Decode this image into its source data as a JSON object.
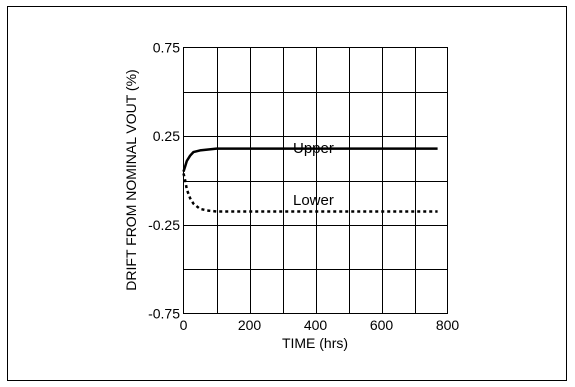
{
  "chart_data": {
    "type": "line",
    "title": "",
    "xlabel": "TIME (hrs)",
    "ylabel": "DRIFT FROM NOMINAL VOUT (%)",
    "xlim": [
      0,
      800
    ],
    "ylim": [
      -0.75,
      0.75
    ],
    "x_ticks": [
      0,
      200,
      400,
      600,
      800
    ],
    "x_tick_labels": [
      "0",
      "200",
      "400",
      "600",
      "800"
    ],
    "y_ticks": [
      -0.75,
      -0.25,
      0.25,
      0.75
    ],
    "y_tick_labels": [
      "-0.75",
      "-0.25",
      "0.25",
      "0.75"
    ],
    "grid": true,
    "series": [
      {
        "name": "Upper",
        "style": "solid",
        "color": "#000000",
        "x": [
          0,
          5,
          10,
          20,
          30,
          50,
          75,
          100,
          200,
          400,
          600,
          770
        ],
        "y": [
          0.05,
          0.08,
          0.11,
          0.14,
          0.16,
          0.17,
          0.175,
          0.18,
          0.18,
          0.18,
          0.18,
          0.18
        ]
      },
      {
        "name": "Lower",
        "style": "dotted",
        "color": "#000000",
        "x": [
          0,
          5,
          10,
          20,
          30,
          50,
          75,
          100,
          200,
          400,
          600,
          770
        ],
        "y": [
          0.04,
          0.0,
          -0.05,
          -0.1,
          -0.13,
          -0.16,
          -0.17,
          -0.175,
          -0.175,
          -0.175,
          -0.175,
          -0.175
        ]
      }
    ]
  }
}
